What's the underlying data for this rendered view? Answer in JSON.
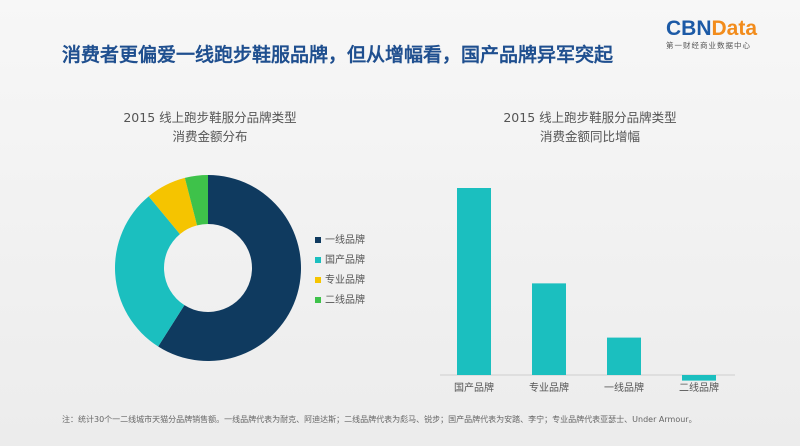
{
  "header": {
    "title": "消费者更偏爱一线跑步鞋服品牌，但从增幅看，国产品牌异军突起"
  },
  "logo": {
    "part1": "CBN",
    "part2": "Data",
    "tagline": "第一财经商业数据中心"
  },
  "chart_data": [
    {
      "type": "pie",
      "style": "donut",
      "title_line1": "2015 线上跑步鞋服分品牌类型",
      "title_line2": "消费金额分布",
      "legend_position": "right",
      "slices": [
        {
          "name": "一线品牌",
          "value": 59,
          "color": "#0f3a5f"
        },
        {
          "name": "国产品牌",
          "value": 30,
          "color": "#1bbfbf"
        },
        {
          "name": "专业品牌",
          "value": 7,
          "color": "#f5c400"
        },
        {
          "name": "二线品牌",
          "value": 4,
          "color": "#3ec24a"
        }
      ]
    },
    {
      "type": "bar",
      "title_line1": "2015 线上跑步鞋服分品牌类型",
      "title_line2": "消费金额同比增幅",
      "categories": [
        "国产品牌",
        "专业品牌",
        "一线品牌",
        "二线品牌"
      ],
      "values": [
        100,
        49,
        20,
        -3
      ],
      "color": "#1bbfbf",
      "ylim": [
        -5,
        100
      ],
      "grid": false
    }
  ],
  "footnote": "注：统计30个一二线城市天猫分品牌销售额。一线品牌代表为耐克、阿迪达斯；二线品牌代表为彪马、锐步；国产品牌代表为安踏、李宁；专业品牌代表亚瑟士、Under Armour。"
}
